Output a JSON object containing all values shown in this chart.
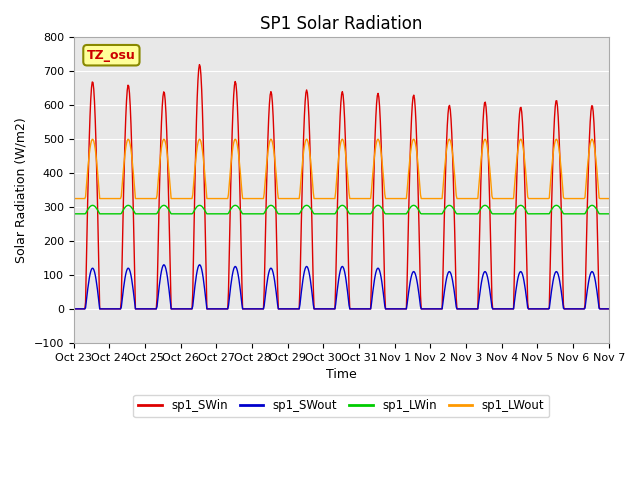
{
  "title": "SP1 Solar Radiation",
  "ylabel": "Solar Radiation (W/m2)",
  "xlabel": "Time",
  "ylim": [
    -100,
    800
  ],
  "tz_label": "TZ_osu",
  "legend": [
    "sp1_SWin",
    "sp1_SWout",
    "sp1_LWin",
    "sp1_LWout"
  ],
  "colors": {
    "sp1_SWin": "#dd0000",
    "sp1_SWout": "#0000cc",
    "sp1_LWin": "#00cc00",
    "sp1_LWout": "#ff9900"
  },
  "xtick_labels": [
    "Oct 23",
    "Oct 24",
    "Oct 25",
    "Oct 26",
    "Oct 27",
    "Oct 28",
    "Oct 29",
    "Oct 30",
    "Oct 31",
    "Nov 1",
    "Nov 2",
    "Nov 3",
    "Nov 4",
    "Nov 5",
    "Nov 6",
    "Nov 7"
  ],
  "sw_in_peaks": [
    670,
    660,
    640,
    720,
    670,
    640,
    645,
    640,
    635,
    630,
    600,
    610,
    595,
    615,
    600
  ],
  "sw_out_peaks": [
    120,
    120,
    130,
    130,
    125,
    120,
    125,
    125,
    120,
    110,
    110,
    110,
    110,
    110,
    110
  ],
  "lw_in_base": 280,
  "lw_in_day_boost": 50,
  "lw_out_base": 325,
  "lw_out_day_boost": 175,
  "fig_bg": "#ffffff",
  "plot_bg": "#e8e8e8",
  "title_fontsize": 12,
  "axis_fontsize": 9,
  "tick_fontsize": 8
}
